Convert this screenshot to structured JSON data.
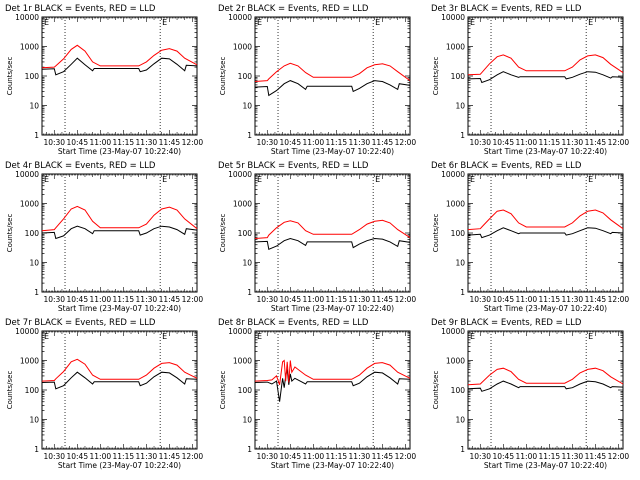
{
  "figure": {
    "x_tick_labels": [
      "10:30",
      "10:45",
      "11:00",
      "11:15",
      "11:30",
      "11:45",
      "12:00"
    ],
    "y_tick_labels": [
      "1",
      "10",
      "100",
      "1000",
      "10000"
    ],
    "xlabel": "Start Time (23-May-07 10:22:40)",
    "ylabel": "Counts/sec",
    "marker_label": "E"
  },
  "chart_data": [
    {
      "type": "line",
      "title": "Det 1r BLACK = Events, RED = LLD",
      "xlabel": "Start Time (23-May-07 10:22:40)",
      "ylabel": "Counts/sec",
      "y_scale": "log",
      "ylim": [
        1,
        10000
      ],
      "xlim": [
        "10:22",
        "12:03"
      ],
      "grid": false,
      "markers_x": [
        "10:37",
        "11:39"
      ],
      "series": [
        {
          "name": "BLACK = Events",
          "color": "#000000",
          "x": [
            "10:22",
            "10:30",
            "10:31",
            "10:36",
            "10:41",
            "10:45",
            "10:50",
            "10:55",
            "10:56",
            "11:25",
            "11:26",
            "11:30",
            "11:35",
            "11:40",
            "11:45",
            "11:50",
            "11:55",
            "11:56",
            "12:03"
          ],
          "values": [
            170,
            175,
            110,
            140,
            250,
            400,
            240,
            150,
            180,
            180,
            140,
            160,
            260,
            400,
            380,
            250,
            150,
            230,
            220
          ]
        },
        {
          "name": "RED = LLD",
          "color": "#ff0000",
          "x": [
            "10:22",
            "10:30",
            "10:31",
            "10:36",
            "10:41",
            "10:45",
            "10:50",
            "10:55",
            "11:00",
            "11:25",
            "11:30",
            "11:35",
            "11:40",
            "11:45",
            "11:50",
            "11:55",
            "12:03"
          ],
          "values": [
            190,
            200,
            220,
            380,
            800,
            1100,
            700,
            300,
            220,
            220,
            300,
            500,
            750,
            850,
            700,
            400,
            240
          ]
        }
      ]
    },
    {
      "type": "line",
      "title": "Det 2r BLACK = Events, RED = LLD",
      "xlabel": "Start Time (23-May-07 10:22:40)",
      "ylabel": "Counts/sec",
      "y_scale": "log",
      "ylim": [
        1,
        10000
      ],
      "xlim": [
        "10:22",
        "12:03"
      ],
      "grid": false,
      "markers_x": [
        "10:37",
        "11:39"
      ],
      "series": [
        {
          "name": "BLACK = Events",
          "color": "#000000",
          "x": [
            "10:22",
            "10:30",
            "10:31",
            "10:36",
            "10:41",
            "10:45",
            "10:50",
            "10:55",
            "10:56",
            "11:25",
            "11:26",
            "11:30",
            "11:35",
            "11:40",
            "11:45",
            "11:50",
            "11:55",
            "11:56",
            "12:03"
          ],
          "values": [
            42,
            44,
            22,
            32,
            55,
            70,
            55,
            35,
            45,
            45,
            30,
            38,
            55,
            70,
            65,
            50,
            35,
            55,
            48
          ]
        },
        {
          "name": "RED = LLD",
          "color": "#ff0000",
          "x": [
            "10:22",
            "10:30",
            "10:31",
            "10:36",
            "10:41",
            "10:45",
            "10:50",
            "10:55",
            "11:00",
            "11:25",
            "11:30",
            "11:35",
            "11:40",
            "11:45",
            "11:50",
            "11:55",
            "12:03"
          ],
          "values": [
            65,
            70,
            80,
            140,
            220,
            270,
            220,
            130,
            90,
            90,
            120,
            190,
            240,
            260,
            220,
            140,
            70
          ]
        }
      ]
    },
    {
      "type": "line",
      "title": "Det 3r BLACK = Events, RED = LLD",
      "xlabel": "Start Time (23-May-07 10:22:40)",
      "ylabel": "Counts/sec",
      "y_scale": "log",
      "ylim": [
        1,
        10000
      ],
      "xlim": [
        "10:22",
        "12:03"
      ],
      "grid": false,
      "markers_x": [
        "10:37",
        "11:39"
      ],
      "series": [
        {
          "name": "BLACK = Events",
          "color": "#000000",
          "x": [
            "10:22",
            "10:30",
            "10:31",
            "10:36",
            "10:41",
            "10:45",
            "10:50",
            "10:55",
            "10:56",
            "11:25",
            "11:26",
            "11:30",
            "11:35",
            "11:40",
            "11:45",
            "11:50",
            "11:55",
            "11:56",
            "12:03"
          ],
          "values": [
            80,
            82,
            60,
            75,
            110,
            140,
            110,
            90,
            95,
            95,
            80,
            90,
            115,
            140,
            135,
            110,
            85,
            95,
            90
          ]
        },
        {
          "name": "RED = LLD",
          "color": "#ff0000",
          "x": [
            "10:22",
            "10:30",
            "10:31",
            "10:36",
            "10:41",
            "10:45",
            "10:50",
            "10:55",
            "11:00",
            "11:25",
            "11:30",
            "11:35",
            "11:40",
            "11:45",
            "11:50",
            "11:55",
            "12:03"
          ],
          "values": [
            110,
            115,
            130,
            260,
            450,
            520,
            400,
            200,
            150,
            150,
            200,
            350,
            480,
            520,
            420,
            250,
            130
          ]
        }
      ]
    },
    {
      "type": "line",
      "title": "Det 4r BLACK = Events, RED = LLD",
      "xlabel": "Start Time (23-May-07 10:22:40)",
      "ylabel": "Counts/sec",
      "y_scale": "log",
      "ylim": [
        1,
        10000
      ],
      "xlim": [
        "10:22",
        "12:03"
      ],
      "grid": false,
      "markers_x": [
        "10:37",
        "11:39"
      ],
      "series": [
        {
          "name": "BLACK = Events",
          "color": "#000000",
          "x": [
            "10:22",
            "10:30",
            "10:31",
            "10:36",
            "10:41",
            "10:45",
            "10:50",
            "10:55",
            "10:56",
            "11:25",
            "11:26",
            "11:30",
            "11:35",
            "11:40",
            "11:45",
            "11:50",
            "11:55",
            "11:56",
            "12:03"
          ],
          "values": [
            100,
            105,
            65,
            80,
            140,
            170,
            140,
            95,
            120,
            120,
            85,
            100,
            140,
            170,
            160,
            130,
            90,
            140,
            125
          ]
        },
        {
          "name": "RED = LLD",
          "color": "#ff0000",
          "x": [
            "10:22",
            "10:30",
            "10:31",
            "10:36",
            "10:41",
            "10:45",
            "10:50",
            "10:55",
            "11:00",
            "11:25",
            "11:30",
            "11:35",
            "11:40",
            "11:45",
            "11:50",
            "11:55",
            "12:03"
          ],
          "values": [
            120,
            130,
            150,
            300,
            650,
            800,
            600,
            250,
            150,
            150,
            200,
            400,
            650,
            750,
            600,
            300,
            140
          ]
        }
      ]
    },
    {
      "type": "line",
      "title": "Det 5r BLACK = Events, RED = LLD",
      "xlabel": "Start Time (23-May-07 10:22:40)",
      "ylabel": "Counts/sec",
      "y_scale": "log",
      "ylim": [
        1,
        10000
      ],
      "xlim": [
        "10:22",
        "12:03"
      ],
      "grid": false,
      "markers_x": [
        "10:37",
        "11:39"
      ],
      "series": [
        {
          "name": "BLACK = Events",
          "color": "#000000",
          "x": [
            "10:22",
            "10:30",
            "10:31",
            "10:36",
            "10:41",
            "10:45",
            "10:50",
            "10:55",
            "10:56",
            "11:25",
            "11:26",
            "11:30",
            "11:35",
            "11:40",
            "11:45",
            "11:50",
            "11:55",
            "11:56",
            "12:03"
          ],
          "values": [
            50,
            52,
            28,
            36,
            55,
            65,
            55,
            38,
            50,
            50,
            32,
            42,
            55,
            65,
            62,
            50,
            35,
            55,
            48
          ]
        },
        {
          "name": "RED = LLD",
          "color": "#ff0000",
          "x": [
            "10:22",
            "10:30",
            "10:31",
            "10:36",
            "10:41",
            "10:45",
            "10:50",
            "10:55",
            "11:00",
            "11:25",
            "11:30",
            "11:35",
            "11:40",
            "11:45",
            "11:50",
            "11:55",
            "12:03"
          ],
          "values": [
            65,
            70,
            85,
            150,
            230,
            260,
            220,
            120,
            90,
            90,
            130,
            200,
            250,
            270,
            220,
            130,
            70
          ]
        }
      ]
    },
    {
      "type": "line",
      "title": "Det 6r BLACK = Events, RED = LLD",
      "xlabel": "Start Time (23-May-07 10:22:40)",
      "ylabel": "Counts/sec",
      "y_scale": "log",
      "ylim": [
        1,
        10000
      ],
      "xlim": [
        "10:22",
        "12:03"
      ],
      "grid": false,
      "markers_x": [
        "10:37",
        "11:39"
      ],
      "series": [
        {
          "name": "BLACK = Events",
          "color": "#000000",
          "x": [
            "10:22",
            "10:30",
            "10:31",
            "10:36",
            "10:41",
            "10:45",
            "10:50",
            "10:55",
            "10:56",
            "11:25",
            "11:26",
            "11:30",
            "11:35",
            "11:40",
            "11:45",
            "11:50",
            "11:55",
            "11:56",
            "12:03"
          ],
          "values": [
            85,
            90,
            70,
            85,
            120,
            150,
            120,
            95,
            100,
            100,
            85,
            95,
            120,
            150,
            145,
            120,
            95,
            105,
            100
          ]
        },
        {
          "name": "RED = LLD",
          "color": "#ff0000",
          "x": [
            "10:22",
            "10:30",
            "10:31",
            "10:36",
            "10:41",
            "10:45",
            "10:50",
            "10:55",
            "11:00",
            "11:25",
            "11:30",
            "11:35",
            "11:40",
            "11:45",
            "11:50",
            "11:55",
            "12:03"
          ],
          "values": [
            130,
            140,
            160,
            300,
            550,
            600,
            450,
            220,
            160,
            160,
            220,
            380,
            550,
            600,
            480,
            280,
            140
          ]
        }
      ]
    },
    {
      "type": "line",
      "title": "Det 7r BLACK = Events, RED = LLD",
      "xlabel": "Start Time (23-May-07 10:22:40)",
      "ylabel": "Counts/sec",
      "y_scale": "log",
      "ylim": [
        1,
        10000
      ],
      "xlim": [
        "10:22",
        "12:03"
      ],
      "grid": false,
      "markers_x": [
        "10:37",
        "11:39"
      ],
      "series": [
        {
          "name": "BLACK = Events",
          "color": "#000000",
          "x": [
            "10:22",
            "10:30",
            "10:31",
            "10:36",
            "10:41",
            "10:45",
            "10:50",
            "10:55",
            "10:56",
            "11:25",
            "11:26",
            "11:30",
            "11:35",
            "11:40",
            "11:45",
            "11:50",
            "11:55",
            "11:56",
            "12:03"
          ],
          "values": [
            180,
            185,
            110,
            140,
            260,
            400,
            260,
            160,
            190,
            190,
            140,
            170,
            280,
            400,
            380,
            260,
            160,
            240,
            230
          ]
        },
        {
          "name": "RED = LLD",
          "color": "#ff0000",
          "x": [
            "10:22",
            "10:30",
            "10:31",
            "10:36",
            "10:41",
            "10:45",
            "10:50",
            "10:55",
            "11:00",
            "11:25",
            "11:30",
            "11:35",
            "11:40",
            "11:45",
            "11:50",
            "11:55",
            "12:03"
          ],
          "values": [
            200,
            210,
            240,
            420,
            900,
            1100,
            750,
            320,
            230,
            230,
            320,
            550,
            800,
            850,
            700,
            400,
            250
          ]
        }
      ]
    },
    {
      "type": "line",
      "title": "Det 8r BLACK = Events, RED = LLD",
      "xlabel": "Start Time (23-May-07 10:22:40)",
      "ylabel": "Counts/sec",
      "y_scale": "log",
      "ylim": [
        1,
        10000
      ],
      "xlim": [
        "10:22",
        "12:03"
      ],
      "grid": false,
      "markers_x": [
        "10:37",
        "11:39"
      ],
      "series": [
        {
          "name": "BLACK = Events",
          "color": "#000000",
          "x": [
            "10:22",
            "10:30",
            "10:33",
            "10:36",
            "10:38",
            "10:40",
            "10:41",
            "10:42",
            "10:43",
            "10:44",
            "10:45",
            "10:46",
            "10:48",
            "10:50",
            "10:55",
            "10:56",
            "11:25",
            "11:26",
            "11:30",
            "11:35",
            "11:40",
            "11:45",
            "11:50",
            "11:55",
            "11:56",
            "12:03"
          ],
          "values": [
            180,
            185,
            160,
            200,
            40,
            250,
            120,
            300,
            500,
            150,
            350,
            200,
            250,
            220,
            160,
            190,
            190,
            140,
            170,
            280,
            400,
            380,
            260,
            160,
            240,
            230
          ]
        },
        {
          "name": "RED = LLD",
          "color": "#ff0000",
          "x": [
            "10:22",
            "10:30",
            "10:33",
            "10:36",
            "10:38",
            "10:40",
            "10:41",
            "10:42",
            "10:43",
            "10:44",
            "10:45",
            "10:46",
            "10:48",
            "10:50",
            "10:55",
            "11:00",
            "11:25",
            "11:30",
            "11:35",
            "11:40",
            "11:45",
            "11:50",
            "11:55",
            "12:03"
          ],
          "values": [
            200,
            210,
            220,
            300,
            150,
            900,
            1000,
            200,
            900,
            180,
            1000,
            400,
            600,
            500,
            320,
            230,
            230,
            320,
            550,
            800,
            850,
            700,
            400,
            250
          ]
        }
      ]
    },
    {
      "type": "line",
      "title": "Det 9r BLACK = Events, RED = LLD",
      "xlabel": "Start Time (23-May-07 10:22:40)",
      "ylabel": "Counts/sec",
      "y_scale": "log",
      "ylim": [
        1,
        10000
      ],
      "xlim": [
        "10:22",
        "12:03"
      ],
      "grid": false,
      "markers_x": [
        "10:37",
        "11:39"
      ],
      "series": [
        {
          "name": "BLACK = Events",
          "color": "#000000",
          "x": [
            "10:22",
            "10:30",
            "10:31",
            "10:36",
            "10:41",
            "10:45",
            "10:50",
            "10:55",
            "10:56",
            "11:25",
            "11:26",
            "11:30",
            "11:35",
            "11:40",
            "11:45",
            "11:50",
            "11:55",
            "11:56",
            "12:03"
          ],
          "values": [
            110,
            115,
            90,
            110,
            160,
            200,
            160,
            120,
            130,
            130,
            110,
            120,
            160,
            200,
            190,
            160,
            120,
            130,
            125
          ]
        },
        {
          "name": "RED = LLD",
          "color": "#ff0000",
          "x": [
            "10:22",
            "10:30",
            "10:31",
            "10:36",
            "10:41",
            "10:45",
            "10:50",
            "10:55",
            "11:00",
            "11:25",
            "11:30",
            "11:35",
            "11:40",
            "11:45",
            "11:50",
            "11:55",
            "12:03"
          ],
          "values": [
            150,
            160,
            180,
            320,
            500,
            550,
            420,
            230,
            170,
            170,
            230,
            380,
            500,
            550,
            450,
            280,
            160
          ]
        }
      ]
    }
  ]
}
